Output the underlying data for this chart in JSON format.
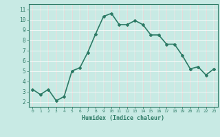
{
  "x": [
    0,
    1,
    2,
    3,
    4,
    5,
    6,
    7,
    8,
    9,
    10,
    11,
    12,
    13,
    14,
    15,
    16,
    17,
    18,
    19,
    20,
    21,
    22,
    23
  ],
  "y": [
    3.2,
    2.7,
    3.2,
    2.1,
    2.5,
    5.0,
    5.3,
    6.8,
    8.6,
    10.3,
    10.6,
    9.5,
    9.5,
    9.9,
    9.5,
    8.5,
    8.5,
    7.6,
    7.6,
    6.5,
    5.2,
    5.4,
    4.6,
    5.2
  ],
  "xlim": [
    -0.5,
    23.5
  ],
  "ylim": [
    1.5,
    11.5
  ],
  "yticks": [
    2,
    3,
    4,
    5,
    6,
    7,
    8,
    9,
    10,
    11
  ],
  "xticks": [
    0,
    1,
    2,
    3,
    4,
    5,
    6,
    7,
    8,
    9,
    10,
    11,
    12,
    13,
    14,
    15,
    16,
    17,
    18,
    19,
    20,
    21,
    22,
    23
  ],
  "xlabel": "Humidex (Indice chaleur)",
  "line_color": "#2d7a65",
  "marker": "D",
  "marker_size": 2.0,
  "bg_color": "#c8eae4",
  "grid_color_major": "#e8c8c8",
  "grid_color_white": "#ffffff",
  "axis_color": "#2d7a65",
  "tick_color": "#2d7a65",
  "label_color": "#2d7a65",
  "line_width": 1.2
}
